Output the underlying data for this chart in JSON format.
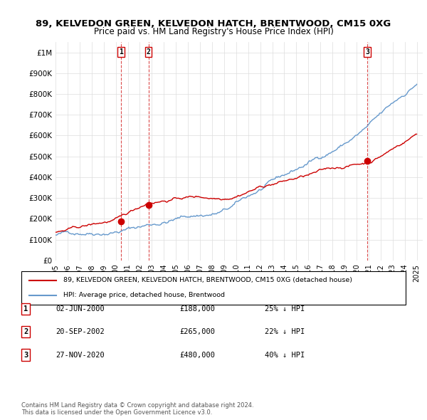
{
  "title": "89, KELVEDON GREEN, KELVEDON HATCH, BRENTWOOD, CM15 0XG",
  "subtitle": "Price paid vs. HM Land Registry's House Price Index (HPI)",
  "legend_label_red": "89, KELVEDON GREEN, KELVEDON HATCH, BRENTWOOD, CM15 0XG (detached house)",
  "legend_label_blue": "HPI: Average price, detached house, Brentwood",
  "footer": "Contains HM Land Registry data © Crown copyright and database right 2024.\nThis data is licensed under the Open Government Licence v3.0.",
  "transactions": [
    {
      "label": "1",
      "date": "02-JUN-2000",
      "price": "£188,000",
      "hpi": "25% ↓ HPI",
      "year": 2000.42
    },
    {
      "label": "2",
      "date": "20-SEP-2002",
      "price": "£265,000",
      "hpi": "22% ↓ HPI",
      "year": 2002.72
    },
    {
      "label": "3",
      "date": "27-NOV-2020",
      "price": "£480,000",
      "hpi": "40% ↓ HPI",
      "year": 2020.9
    }
  ],
  "transaction_prices": [
    188000,
    265000,
    480000
  ],
  "xlim": [
    1995,
    2025.5
  ],
  "ylim": [
    0,
    1050000
  ],
  "yticks": [
    0,
    100000,
    200000,
    300000,
    400000,
    500000,
    600000,
    700000,
    800000,
    900000,
    1000000
  ],
  "ytick_labels": [
    "£0",
    "£100K",
    "£200K",
    "£300K",
    "£400K",
    "£500K",
    "£600K",
    "£700K",
    "£800K",
    "£900K",
    "£1M"
  ],
  "xticks": [
    1995,
    1996,
    1997,
    1998,
    1999,
    2000,
    2001,
    2002,
    2003,
    2004,
    2005,
    2006,
    2007,
    2008,
    2009,
    2010,
    2011,
    2012,
    2013,
    2014,
    2015,
    2016,
    2017,
    2018,
    2019,
    2020,
    2021,
    2022,
    2023,
    2024,
    2025
  ],
  "red_color": "#cc0000",
  "blue_color": "#6699cc",
  "vline_color": "#cc0000",
  "background_color": "#ffffff",
  "grid_color": "#dddddd"
}
